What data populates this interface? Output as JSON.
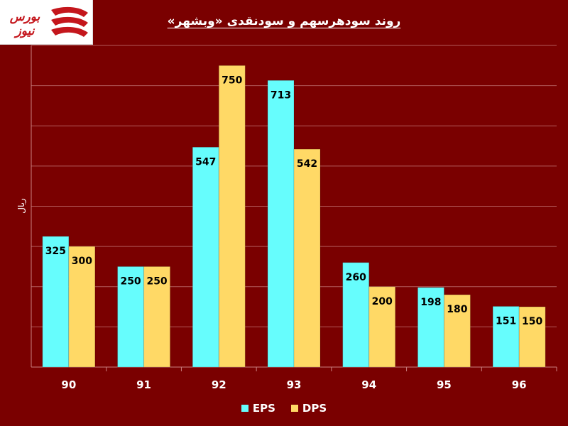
{
  "title": "روند سودهرسهم و سودنقدی «وبشهر»",
  "logo": {
    "text": "بورس نیوز",
    "color": "#c4161c"
  },
  "colors": {
    "background": "#7a0000",
    "eps": "#66fdfd",
    "dps": "#ffd966",
    "grid": "#b25a5a",
    "axis": "#c98080",
    "text": "#ffffff",
    "label": "#000000"
  },
  "chart_data": {
    "type": "bar",
    "ylabel": "ریال",
    "ylim": [
      0,
      800
    ],
    "grid": true,
    "legend_position": "bottom",
    "categories": [
      "90",
      "91",
      "92",
      "93",
      "94",
      "95",
      "96"
    ],
    "series": [
      {
        "name": "EPS",
        "values": [
          325,
          250,
          547,
          713,
          260,
          198,
          151
        ]
      },
      {
        "name": "DPS",
        "values": [
          300,
          250,
          750,
          542,
          200,
          180,
          150
        ]
      }
    ]
  }
}
